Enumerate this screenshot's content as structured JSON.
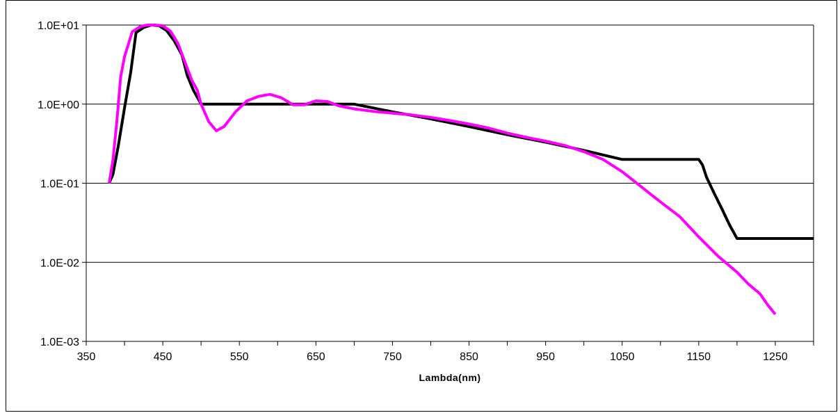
{
  "chart_data": {
    "type": "line",
    "title": "",
    "xlabel": "Lambda(nm)",
    "ylabel": "",
    "x_scale": "linear",
    "y_scale": "log",
    "xlim": [
      350,
      1300
    ],
    "ylim": [
      0.001,
      10
    ],
    "x_ticks": [
      350,
      450,
      550,
      650,
      750,
      850,
      950,
      1050,
      1150,
      1250
    ],
    "x_tick_labels": [
      "350",
      "450",
      "550",
      "650",
      "750",
      "850",
      "950",
      "1050",
      "1150",
      "1250"
    ],
    "y_ticks": [
      0.001,
      0.01,
      0.1,
      1,
      10
    ],
    "y_tick_labels": [
      "1.0E-03",
      "1.0E-02",
      "1.0E-01",
      "1.0E+00",
      "1.0E+01"
    ],
    "grid": "horizontal major gridlines",
    "legend": "none",
    "series": [
      {
        "color": "#000000",
        "points": [
          [
            380,
            0.1
          ],
          [
            385,
            0.13
          ],
          [
            392,
            0.3
          ],
          [
            400,
            0.9
          ],
          [
            408,
            2.5
          ],
          [
            415,
            8
          ],
          [
            425,
            9.3
          ],
          [
            435,
            10
          ],
          [
            445,
            9.8
          ],
          [
            455,
            8.5
          ],
          [
            465,
            6.3
          ],
          [
            475,
            4.2
          ],
          [
            482,
            2.3
          ],
          [
            490,
            1.5
          ],
          [
            500,
            1.0
          ],
          [
            550,
            1.0
          ],
          [
            600,
            1.0
          ],
          [
            650,
            1.0
          ],
          [
            700,
            1.0
          ],
          [
            750,
            0.8
          ],
          [
            800,
            0.65
          ],
          [
            850,
            0.52
          ],
          [
            900,
            0.41
          ],
          [
            950,
            0.33
          ],
          [
            1000,
            0.26
          ],
          [
            1050,
            0.2
          ],
          [
            1100,
            0.2
          ],
          [
            1150,
            0.2
          ],
          [
            1155,
            0.17
          ],
          [
            1160,
            0.12
          ],
          [
            1170,
            0.075
          ],
          [
            1180,
            0.048
          ],
          [
            1190,
            0.03
          ],
          [
            1200,
            0.02
          ],
          [
            1250,
            0.02
          ],
          [
            1300,
            0.02
          ]
        ]
      },
      {
        "color": "#ff00ff",
        "points": [
          [
            380,
            0.1
          ],
          [
            385,
            0.2
          ],
          [
            390,
            0.6
          ],
          [
            395,
            2.2
          ],
          [
            400,
            4
          ],
          [
            410,
            8.2
          ],
          [
            420,
            9.5
          ],
          [
            430,
            10
          ],
          [
            440,
            10
          ],
          [
            450,
            9.8
          ],
          [
            460,
            8.4
          ],
          [
            470,
            5.8
          ],
          [
            480,
            3.2
          ],
          [
            488,
            2.0
          ],
          [
            495,
            1.5
          ],
          [
            500,
            1.0
          ],
          [
            510,
            0.6
          ],
          [
            520,
            0.46
          ],
          [
            530,
            0.52
          ],
          [
            545,
            0.8
          ],
          [
            560,
            1.1
          ],
          [
            575,
            1.25
          ],
          [
            590,
            1.33
          ],
          [
            605,
            1.2
          ],
          [
            620,
            0.98
          ],
          [
            635,
            0.98
          ],
          [
            650,
            1.1
          ],
          [
            665,
            1.08
          ],
          [
            680,
            0.95
          ],
          [
            700,
            0.87
          ],
          [
            725,
            0.81
          ],
          [
            750,
            0.77
          ],
          [
            775,
            0.73
          ],
          [
            800,
            0.68
          ],
          [
            825,
            0.62
          ],
          [
            850,
            0.56
          ],
          [
            875,
            0.5
          ],
          [
            900,
            0.43
          ],
          [
            925,
            0.38
          ],
          [
            950,
            0.34
          ],
          [
            975,
            0.3
          ],
          [
            1000,
            0.25
          ],
          [
            1025,
            0.2
          ],
          [
            1050,
            0.14
          ],
          [
            1075,
            0.09
          ],
          [
            1100,
            0.058
          ],
          [
            1125,
            0.038
          ],
          [
            1150,
            0.021
          ],
          [
            1175,
            0.012
          ],
          [
            1200,
            0.0075
          ],
          [
            1215,
            0.0053
          ],
          [
            1230,
            0.004
          ],
          [
            1240,
            0.0029
          ],
          [
            1250,
            0.0022
          ]
        ]
      }
    ]
  }
}
